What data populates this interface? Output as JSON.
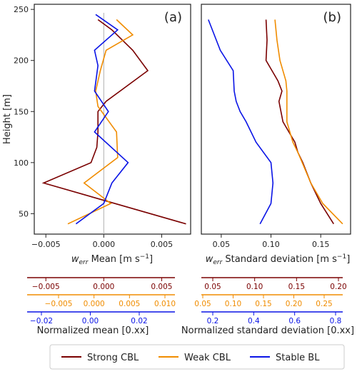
{
  "chart_data": [
    {
      "type": "line",
      "panel_label": "(a)",
      "ylabel": "Height [m]",
      "xlabel": "w_err Mean [m s^-1]",
      "xlabel_main": "w",
      "xlabel_sub": "err",
      "xlabel_rest": " Mean [m s",
      "xlabel_sup": "−1",
      "xlabel_end": "]",
      "xlim": [
        -0.006,
        0.0075
      ],
      "ylim": [
        30,
        255
      ],
      "x_ticks": [
        -0.005,
        0.0,
        0.005
      ],
      "x_tick_labels": [
        "−0.005",
        "0.000",
        "0.005"
      ],
      "y_ticks": [
        50,
        100,
        150,
        200,
        250
      ],
      "y_tick_labels": [
        "50",
        "100",
        "150",
        "200",
        "250"
      ],
      "reference_line_x": 0,
      "grid": false,
      "series": [
        {
          "name": "Strong CBL",
          "color": "#7a0000",
          "x": [
            -0.0005,
            0.0007,
            0.0025,
            0.0038,
            0.0002,
            -0.0005,
            -0.0005,
            -0.0006,
            -0.0011,
            -0.0052,
            0.0071
          ],
          "y": [
            240,
            230,
            210,
            190,
            160,
            150,
            130,
            115,
            100,
            80,
            40
          ]
        },
        {
          "name": "Weak CBL",
          "color": "#f08c00",
          "x": [
            0.0011,
            0.0025,
            0.0002,
            -0.0003,
            -0.0007,
            -0.0005,
            0.0011,
            0.0012,
            -0.0017,
            0.0006,
            -0.0031
          ],
          "y": [
            240,
            225,
            210,
            190,
            170,
            155,
            130,
            105,
            80,
            60,
            40
          ]
        },
        {
          "name": "Stable BL",
          "color": "#0a14e6",
          "x": [
            -0.0007,
            0.0012,
            -0.0008,
            -0.0005,
            -0.0008,
            0.0004,
            -0.0008,
            0.0021,
            0.0007,
            0.0,
            -0.0024
          ],
          "y": [
            245,
            230,
            210,
            195,
            170,
            150,
            130,
            100,
            80,
            60,
            40
          ]
        }
      ]
    },
    {
      "type": "line",
      "panel_label": "(b)",
      "xlabel": "w_err Standard deviation [m s^-1]",
      "xlabel_main": "w",
      "xlabel_sub": "err",
      "xlabel_rest": " Standard deviation [m s",
      "xlabel_sup": "−1",
      "xlabel_end": "]",
      "xlim": [
        0.03,
        0.18
      ],
      "ylim": [
        30,
        255
      ],
      "x_ticks": [
        0.05,
        0.1,
        0.15
      ],
      "x_tick_labels": [
        "0.05",
        "0.10",
        "0.15"
      ],
      "grid": false,
      "series": [
        {
          "name": "Strong CBL",
          "color": "#7a0000",
          "x": [
            0.095,
            0.096,
            0.095,
            0.107,
            0.111,
            0.108,
            0.112,
            0.124,
            0.127,
            0.132,
            0.14,
            0.15,
            0.163
          ],
          "y": [
            240,
            220,
            200,
            180,
            170,
            160,
            140,
            120,
            110,
            100,
            80,
            60,
            40
          ]
        },
        {
          "name": "Weak CBL",
          "color": "#f08c00",
          "x": [
            0.104,
            0.106,
            0.109,
            0.115,
            0.116,
            0.116,
            0.116,
            0.122,
            0.127,
            0.14,
            0.152,
            0.172
          ],
          "y": [
            240,
            220,
            200,
            180,
            170,
            160,
            140,
            120,
            110,
            80,
            60,
            40
          ]
        },
        {
          "name": "Stable BL",
          "color": "#0a14e6",
          "x": [
            0.037,
            0.049,
            0.062,
            0.063,
            0.065,
            0.069,
            0.075,
            0.085,
            0.1,
            0.102,
            0.1,
            0.089
          ],
          "y": [
            240,
            210,
            190,
            170,
            160,
            150,
            140,
            120,
            100,
            80,
            60,
            40
          ]
        }
      ]
    }
  ],
  "secondary_axes": {
    "mean": {
      "label": "Normalized mean [0.xx]",
      "axes": [
        {
          "series": "Strong CBL",
          "color": "#7a0000",
          "ticks": [
            -0.005,
            0.0,
            0.005
          ],
          "tick_labels": [
            "−0.005",
            "0.000",
            "0.005"
          ]
        },
        {
          "series": "Weak CBL",
          "color": "#f08c00",
          "ticks": [
            -0.005,
            0.0,
            0.005,
            0.01
          ],
          "tick_labels": [
            "−0.005",
            "0.000",
            "0.005",
            "0.010"
          ]
        },
        {
          "series": "Stable BL",
          "color": "#0a14e6",
          "ticks": [
            -0.02,
            0.0,
            0.02
          ],
          "tick_labels": [
            "−0.02",
            "0.00",
            "0.02"
          ]
        }
      ]
    },
    "sd": {
      "label": "Normalized standard deviation [0.xx]",
      "axes": [
        {
          "series": "Strong CBL",
          "color": "#7a0000",
          "ticks": [
            0.05,
            0.1,
            0.15,
            0.2
          ],
          "tick_labels": [
            "0.05",
            "0.10",
            "0.15",
            "0.20"
          ]
        },
        {
          "series": "Weak CBL",
          "color": "#f08c00",
          "ticks": [
            0.05,
            0.1,
            0.15,
            0.2,
            0.25
          ],
          "tick_labels": [
            "0.05",
            "0.10",
            "0.15",
            "0.20",
            "0.25"
          ]
        },
        {
          "series": "Stable BL",
          "color": "#0a14e6",
          "ticks": [
            0.2,
            0.4,
            0.6,
            0.8
          ],
          "tick_labels": [
            "0.2",
            "0.4",
            "0.6",
            "0.8"
          ]
        }
      ]
    }
  },
  "legend": {
    "placement": "bottom",
    "entries": [
      {
        "label": "Strong CBL",
        "color": "#7a0000"
      },
      {
        "label": "Weak CBL",
        "color": "#f08c00"
      },
      {
        "label": "Stable BL",
        "color": "#0a14e6"
      }
    ]
  }
}
